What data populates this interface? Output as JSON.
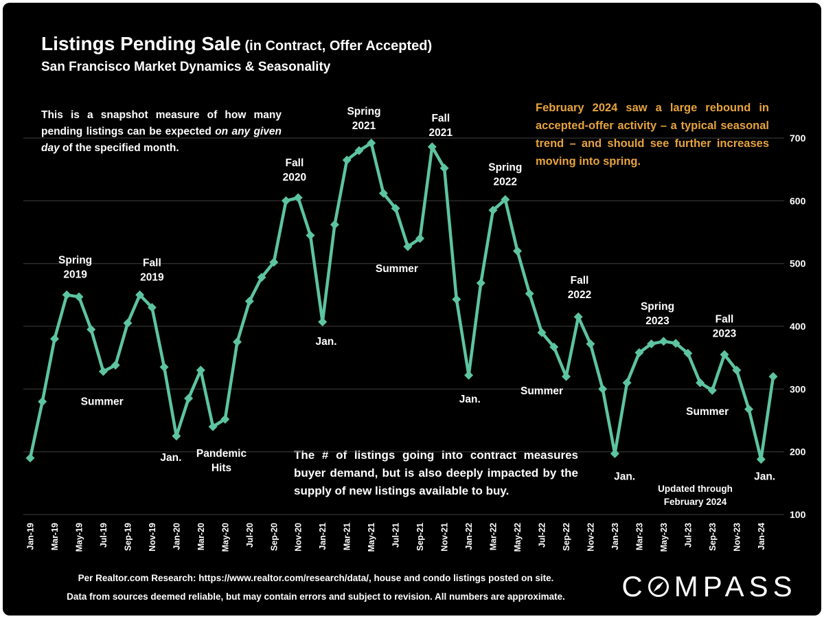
{
  "title": {
    "main": "Listings Pending Sale",
    "suffix": " (in Contract, Offer Accepted)",
    "subtitle": "San Francisco Market Dynamics & Seasonality"
  },
  "notes": {
    "snapshot": {
      "pre": "This is a snapshot measure of how many pending listings can be expected ",
      "italic": "on any given day",
      "post": " of the specified month."
    },
    "highlight": "February 2024 saw a large rebound in accepted-offer activity – a typical seasonal trend – and should see further increases moving into spring.",
    "demand": "The # of listings going into contract measures buyer demand, but is also deeply impacted by the supply of new listings available to buy."
  },
  "footer": {
    "line1": "Per Realtor.com Research:  https://www.realtor.com/research/data/, house and condo listings posted on site.",
    "line2": "Data from sources deemed reliable, but may contain errors and subject to revision. All numbers are approximate.",
    "brand": "COMPASS"
  },
  "colors": {
    "background": "#000000",
    "line": "#5dc4a0",
    "grid": "#404040",
    "text": "#ffffff",
    "highlight": "#e6a33e"
  },
  "chart_data": {
    "type": "line",
    "title": "Listings Pending Sale (in Contract, Offer Accepted)",
    "subtitle": "San Francisco Market Dynamics & Seasonality",
    "x": [
      "Jan-19",
      "Feb-19",
      "Mar-19",
      "Apr-19",
      "May-19",
      "Jun-19",
      "Jul-19",
      "Aug-19",
      "Sep-19",
      "Oct-19",
      "Nov-19",
      "Dec-19",
      "Jan-20",
      "Feb-20",
      "Mar-20",
      "Apr-20",
      "May-20",
      "Jun-20",
      "Jul-20",
      "Aug-20",
      "Sep-20",
      "Oct-20",
      "Nov-20",
      "Dec-20",
      "Jan-21",
      "Feb-21",
      "Mar-21",
      "Apr-21",
      "May-21",
      "Jun-21",
      "Jul-21",
      "Aug-21",
      "Sep-21",
      "Oct-21",
      "Nov-21",
      "Dec-21",
      "Jan-22",
      "Feb-22",
      "Mar-22",
      "Apr-22",
      "May-22",
      "Jun-22",
      "Jul-22",
      "Aug-22",
      "Sep-22",
      "Oct-22",
      "Nov-22",
      "Dec-22",
      "Jan-23",
      "Feb-23",
      "Mar-23",
      "Apr-23",
      "May-23",
      "Jun-23",
      "Jul-23",
      "Aug-23",
      "Sep-23",
      "Oct-23",
      "Nov-23",
      "Dec-23",
      "Jan-24",
      "Feb-24"
    ],
    "values": [
      190,
      280,
      380,
      450,
      447,
      395,
      328,
      338,
      405,
      450,
      430,
      335,
      225,
      285,
      330,
      240,
      252,
      375,
      440,
      478,
      502,
      600,
      605,
      545,
      407,
      562,
      665,
      680,
      692,
      612,
      588,
      527,
      540,
      686,
      652,
      443,
      322,
      469,
      585,
      602,
      520,
      452,
      390,
      367,
      320,
      415,
      372,
      300,
      197,
      310,
      358,
      372,
      376,
      373,
      357,
      310,
      298,
      355,
      330,
      268,
      188,
      320
    ],
    "x_tick_every": 2,
    "ylim": [
      100,
      700
    ],
    "y_ticks": [
      100,
      200,
      300,
      400,
      500,
      600,
      700
    ],
    "y_axis_side": "right",
    "grid": true,
    "marker": "diamond",
    "line_color": "#5dc4a0",
    "annotations": [
      {
        "lines": [
          "Spring",
          "2019"
        ],
        "month": 3.7,
        "value": 494
      },
      {
        "lines": [
          "Summer"
        ],
        "month": 5.9,
        "value": 280
      },
      {
        "lines": [
          "Fall",
          "2019"
        ],
        "month": 10.0,
        "value": 490
      },
      {
        "lines": [
          "Jan."
        ],
        "month": 11.55,
        "value": 191
      },
      {
        "lines": [
          "Pandemic",
          "Hits"
        ],
        "month": 15.7,
        "value": 186
      },
      {
        "lines": [
          "Fall",
          "2020"
        ],
        "month": 21.7,
        "value": 649
      },
      {
        "lines": [
          "Jan."
        ],
        "month": 24.3,
        "value": 376
      },
      {
        "lines": [
          "Spring",
          "2021"
        ],
        "month": 27.4,
        "value": 731
      },
      {
        "lines": [
          "Summer"
        ],
        "month": 30.1,
        "value": 492
      },
      {
        "lines": [
          "Fall",
          "2021"
        ],
        "month": 33.7,
        "value": 720
      },
      {
        "lines": [
          "Jan."
        ],
        "month": 36.1,
        "value": 284
      },
      {
        "lines": [
          "Spring",
          "2022"
        ],
        "month": 39.0,
        "value": 642
      },
      {
        "lines": [
          "Summer"
        ],
        "month": 42.0,
        "value": 297
      },
      {
        "lines": [
          "Fall",
          "2022"
        ],
        "month": 45.1,
        "value": 462
      },
      {
        "lines": [
          "Jan."
        ],
        "month": 48.8,
        "value": 161
      },
      {
        "lines": [
          "Spring",
          "2023"
        ],
        "month": 51.5,
        "value": 420
      },
      {
        "lines": [
          "Summer"
        ],
        "month": 55.6,
        "value": 264
      },
      {
        "lines": [
          "Fall",
          "2023"
        ],
        "month": 57.0,
        "value": 400
      },
      {
        "lines": [
          "Jan."
        ],
        "month": 60.3,
        "value": 161
      },
      {
        "lines": [
          "Updated through",
          "February 2024"
        ],
        "month": 54.6,
        "value": 131,
        "small": true
      }
    ]
  }
}
